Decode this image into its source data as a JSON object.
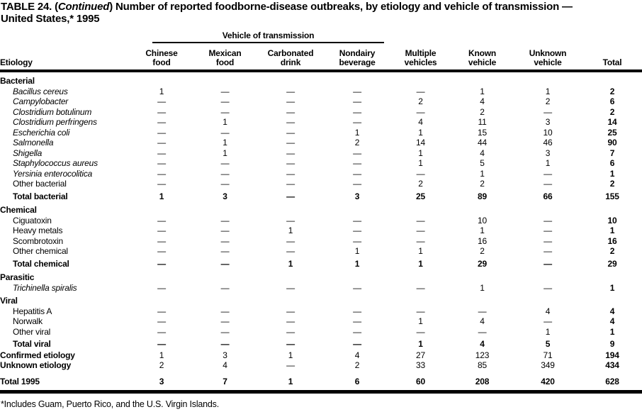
{
  "title": {
    "prefix": "TABLE 24. (",
    "continued": "Continued",
    "rest": ") Number of reported foodborne-disease outbreaks, by etiology and vehicle of transmission —",
    "line2": "United States,* 1995"
  },
  "table": {
    "group_header": "Vehicle of transmission",
    "etiology_header": "Etiology",
    "col_headers": [
      "Chinese\nfood",
      "Mexican\nfood",
      "Carbonated\ndrink",
      "Nondairy\nbeverage",
      "Multiple\nvehicles",
      "Known\nvehicle",
      "Unknown\nvehicle",
      "Total"
    ],
    "rows": [
      {
        "type": "section",
        "label": "Bacterial",
        "cells": []
      },
      {
        "type": "species",
        "label": "Bacillus cereus",
        "cells": [
          "1",
          "—",
          "—",
          "—",
          "—",
          "1",
          "1",
          "2"
        ]
      },
      {
        "type": "species",
        "label": "Campylobacter",
        "cells": [
          "—",
          "—",
          "—",
          "—",
          "2",
          "4",
          "2",
          "6"
        ]
      },
      {
        "type": "species",
        "label": "Clostridium botulinum",
        "cells": [
          "—",
          "—",
          "—",
          "—",
          "—",
          "2",
          "—",
          "2"
        ]
      },
      {
        "type": "species",
        "label": "Clostridium perfringens",
        "cells": [
          "—",
          "1",
          "—",
          "—",
          "4",
          "11",
          "3",
          "14"
        ]
      },
      {
        "type": "species",
        "label": "Escherichia coli",
        "cells": [
          "—",
          "—",
          "—",
          "1",
          "1",
          "15",
          "10",
          "25"
        ]
      },
      {
        "type": "species",
        "label": "Salmonella",
        "cells": [
          "—",
          "1",
          "—",
          "2",
          "14",
          "44",
          "46",
          "90"
        ]
      },
      {
        "type": "species",
        "label": "Shigella",
        "cells": [
          "—",
          "1",
          "—",
          "—",
          "1",
          "4",
          "3",
          "7"
        ]
      },
      {
        "type": "species",
        "label": "Staphylococcus aureus",
        "cells": [
          "—",
          "—",
          "—",
          "—",
          "1",
          "5",
          "1",
          "6"
        ]
      },
      {
        "type": "species",
        "label": "Yersinia enterocolitica",
        "cells": [
          "—",
          "—",
          "—",
          "—",
          "—",
          "1",
          "—",
          "1"
        ]
      },
      {
        "type": "item",
        "label": "Other bacterial",
        "cells": [
          "—",
          "—",
          "—",
          "—",
          "2",
          "2",
          "—",
          "2"
        ]
      },
      {
        "type": "total",
        "label": "Total bacterial",
        "cells": [
          "1",
          "3",
          "—",
          "3",
          "25",
          "89",
          "66",
          "155"
        ]
      },
      {
        "type": "section",
        "label": "Chemical",
        "cells": []
      },
      {
        "type": "item",
        "label": "Ciguatoxin",
        "cells": [
          "—",
          "—",
          "—",
          "—",
          "—",
          "10",
          "—",
          "10"
        ]
      },
      {
        "type": "item",
        "label": "Heavy metals",
        "cells": [
          "—",
          "—",
          "1",
          "—",
          "—",
          "1",
          "—",
          "1"
        ]
      },
      {
        "type": "item",
        "label": "Scombrotoxin",
        "cells": [
          "—",
          "—",
          "—",
          "—",
          "—",
          "16",
          "—",
          "16"
        ]
      },
      {
        "type": "item",
        "label": "Other chemical",
        "cells": [
          "—",
          "—",
          "—",
          "1",
          "1",
          "2",
          "—",
          "2"
        ]
      },
      {
        "type": "total",
        "label": "Total chemical",
        "cells": [
          "—",
          "—",
          "1",
          "1",
          "1",
          "29",
          "—",
          "29"
        ]
      },
      {
        "type": "section",
        "label": "Parasitic",
        "cells": []
      },
      {
        "type": "species",
        "label": "Trichinella spiralis",
        "cells": [
          "—",
          "—",
          "—",
          "—",
          "—",
          "1",
          "—",
          "1"
        ]
      },
      {
        "type": "section",
        "label": "Viral",
        "cells": []
      },
      {
        "type": "item",
        "label": "Hepatitis A",
        "cells": [
          "—",
          "—",
          "—",
          "—",
          "—",
          "—",
          "4",
          "4"
        ]
      },
      {
        "type": "item",
        "label": "Norwalk",
        "cells": [
          "—",
          "—",
          "—",
          "—",
          "1",
          "4",
          "—",
          "4"
        ]
      },
      {
        "type": "item",
        "label": "Other viral",
        "cells": [
          "—",
          "—",
          "—",
          "—",
          "—",
          "—",
          "1",
          "1"
        ]
      },
      {
        "type": "total",
        "label": "Total viral",
        "cells": [
          "—",
          "—",
          "—",
          "—",
          "1",
          "4",
          "5",
          "9"
        ]
      },
      {
        "type": "summary",
        "label": "Confirmed etiology",
        "cells": [
          "1",
          "3",
          "1",
          "4",
          "27",
          "123",
          "71",
          "194"
        ]
      },
      {
        "type": "summary",
        "label": "Unknown etiology",
        "cells": [
          "2",
          "4",
          "—",
          "2",
          "33",
          "85",
          "349",
          "434"
        ]
      },
      {
        "type": "grandtotal",
        "label": "Total 1995",
        "cells": [
          "3",
          "7",
          "1",
          "6",
          "60",
          "208",
          "420",
          "628"
        ]
      }
    ]
  },
  "footnote": "*Includes Guam, Puerto Rico, and the U.S. Virgin Islands."
}
